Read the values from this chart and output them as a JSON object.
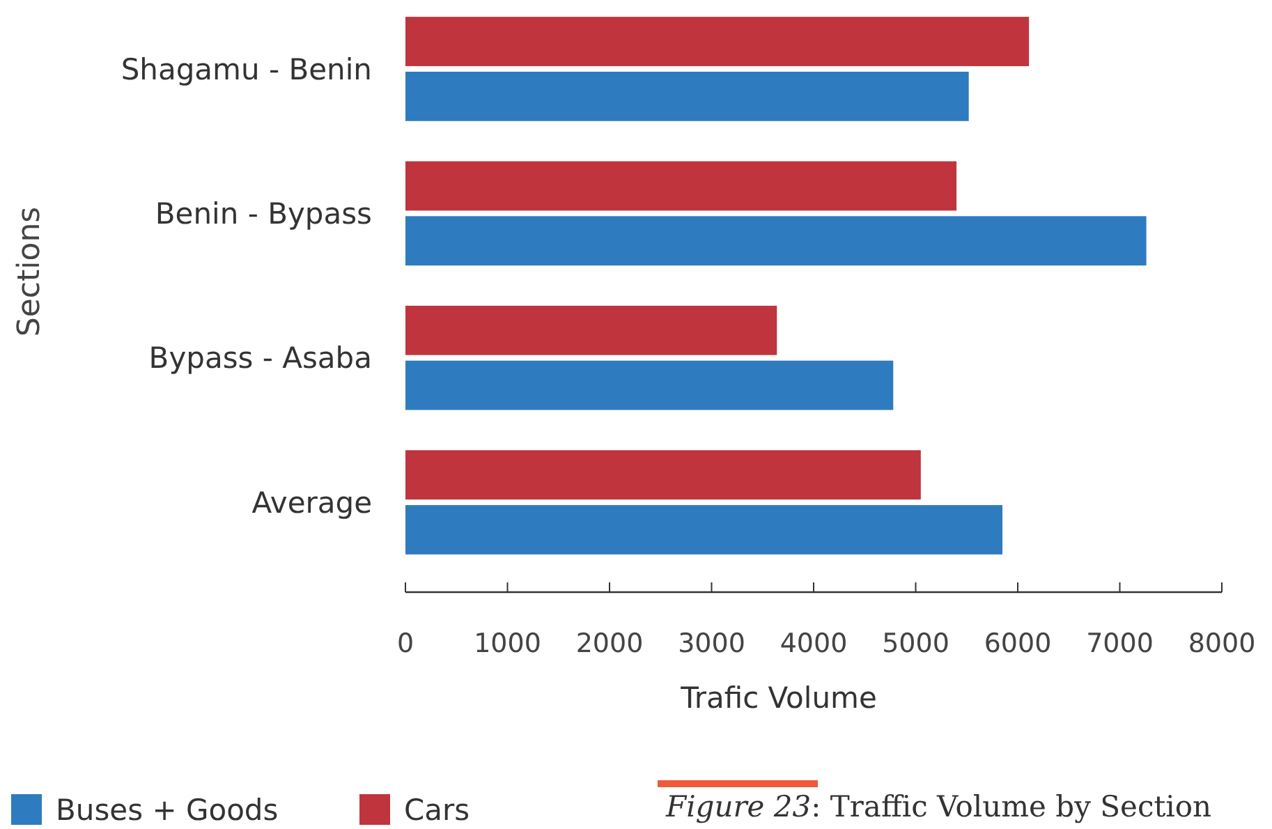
{
  "chart_data": {
    "type": "bar",
    "orientation": "horizontal",
    "xlabel": "Trafic Volume",
    "ylabel": "Sections",
    "categories": [
      "Shagamu - Benin",
      "Benin - Bypass",
      "Bypass - Asaba",
      "Average"
    ],
    "series": [
      {
        "name": "Buses + Goods",
        "color": "#2f7bbf",
        "values": [
          5520,
          7260,
          4780,
          5850
        ]
      },
      {
        "name": "Cars",
        "color": "#c0343e",
        "values": [
          6110,
          5400,
          3640,
          5050
        ]
      }
    ],
    "xlim": [
      0,
      8000
    ],
    "xticks": [
      0,
      1000,
      2000,
      3000,
      4000,
      5000,
      6000,
      7000,
      8000
    ],
    "grid": false,
    "legend": "bottom left",
    "annotations": [
      "Figure 23: Traffic Volume by Section"
    ]
  }
}
